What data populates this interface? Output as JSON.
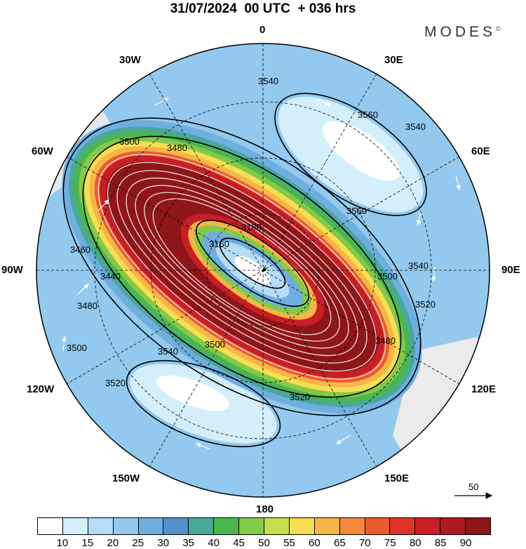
{
  "header": {
    "title": "31/07/2024  00 UTC  + 036 hrs",
    "brand": "MODES",
    "brand_mark": "©"
  },
  "map": {
    "projection": "polar-stereographic",
    "longitude_labels": {
      "n0": "0",
      "n30e": "30E",
      "n60e": "60E",
      "n90e": "90E",
      "n120e": "120E",
      "n150e": "150E",
      "n180": "180",
      "n150w": "150W",
      "n120w": "120W",
      "n90w": "90W",
      "n60w": "60W",
      "n30w": "30W"
    },
    "contour_labels": [
      "3540",
      "3560",
      "3540",
      "3500",
      "3480",
      "3560",
      "3540",
      "3500",
      "3520",
      "3480",
      "3460",
      "3440",
      "3480",
      "3500",
      "3540",
      "3520",
      "3520",
      "3500",
      "3180",
      "3160"
    ],
    "vector_reference": {
      "value": "50"
    },
    "colors": {
      "land": "#ebebeb",
      "contour": "#000000",
      "vector": "#ffffff"
    }
  },
  "colorbar": {
    "colors": [
      "#ffffff",
      "#d4eefc",
      "#b5ddf7",
      "#93c9ee",
      "#6fafe0",
      "#4f92cc",
      "#4aa89a",
      "#4cb64e",
      "#84c94a",
      "#c8dc4c",
      "#f6de52",
      "#f5b547",
      "#f2893c",
      "#ea5b2f",
      "#dc3427",
      "#c81e25",
      "#ad1a22",
      "#8e1519"
    ],
    "ticks": [
      "10",
      "15",
      "20",
      "25",
      "30",
      "35",
      "40",
      "45",
      "50",
      "55",
      "60",
      "65",
      "70",
      "75",
      "80",
      "85",
      "90"
    ]
  }
}
